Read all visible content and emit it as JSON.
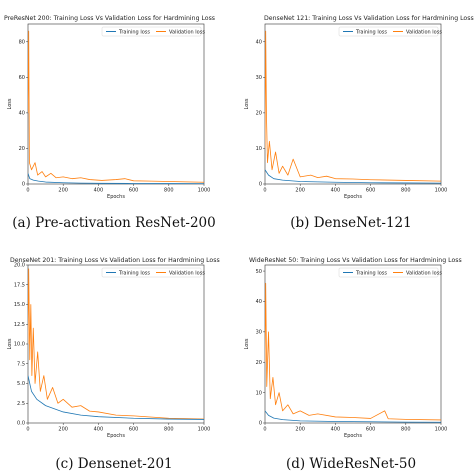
{
  "colors": {
    "training": "#1f77b4",
    "validation": "#ff7f0e"
  },
  "chart_data": [
    {
      "type": "line",
      "title": "PreResNet 200: Training Loss Vs Validation Loss for Hardmining Loss",
      "xlabel": "Epochs",
      "ylabel": "Loss",
      "caption": "(a) Pre-activation ResNet-200",
      "xlim": [
        0,
        1000
      ],
      "ylim": [
        0,
        90
      ],
      "xticks": [
        0,
        200,
        400,
        600,
        800,
        1000
      ],
      "yticks": [
        0,
        20,
        40,
        60,
        80
      ],
      "grid": false,
      "legend": "top-right",
      "series": [
        {
          "name": "Training loss",
          "color": "#1f77b4",
          "points": [
            [
              0,
              6
            ],
            [
              10,
              3
            ],
            [
              30,
              2.2
            ],
            [
              60,
              1.6
            ],
            [
              100,
              1.1
            ],
            [
              200,
              0.7
            ],
            [
              300,
              0.5
            ],
            [
              400,
              0.4
            ],
            [
              600,
              0.3
            ],
            [
              800,
              0.25
            ],
            [
              1000,
              0.2
            ]
          ]
        },
        {
          "name": "Validation loss",
          "color": "#ff7f0e",
          "points": [
            [
              0,
              40
            ],
            [
              4,
              86
            ],
            [
              8,
              12
            ],
            [
              20,
              8
            ],
            [
              40,
              12
            ],
            [
              55,
              5
            ],
            [
              80,
              7
            ],
            [
              100,
              4
            ],
            [
              130,
              6
            ],
            [
              160,
              3.5
            ],
            [
              200,
              4
            ],
            [
              250,
              3
            ],
            [
              300,
              3.5
            ],
            [
              350,
              2.5
            ],
            [
              420,
              2
            ],
            [
              500,
              2.5
            ],
            [
              550,
              3
            ],
            [
              600,
              1.8
            ],
            [
              700,
              1.6
            ],
            [
              800,
              1.4
            ],
            [
              900,
              1.2
            ],
            [
              1000,
              1
            ]
          ]
        }
      ]
    },
    {
      "type": "line",
      "title": "DenseNet 121: Training Loss Vs Validation Loss for Hardmining Loss",
      "xlabel": "Epochs",
      "ylabel": "Loss",
      "caption": "(b) DenseNet-121",
      "xlim": [
        0,
        1000
      ],
      "ylim": [
        0,
        45
      ],
      "xticks": [
        0,
        200,
        400,
        600,
        800,
        1000
      ],
      "yticks": [
        0,
        10,
        20,
        30,
        40
      ],
      "grid": false,
      "legend": "top-right",
      "series": [
        {
          "name": "Training loss",
          "color": "#1f77b4",
          "points": [
            [
              0,
              4
            ],
            [
              20,
              2.5
            ],
            [
              50,
              1.5
            ],
            [
              100,
              1.1
            ],
            [
              200,
              0.7
            ],
            [
              400,
              0.5
            ],
            [
              600,
              0.35
            ],
            [
              800,
              0.3
            ],
            [
              1000,
              0.25
            ]
          ]
        },
        {
          "name": "Validation loss",
          "color": "#ff7f0e",
          "points": [
            [
              0,
              10
            ],
            [
              4,
              43
            ],
            [
              8,
              20
            ],
            [
              14,
              6
            ],
            [
              25,
              12
            ],
            [
              40,
              4
            ],
            [
              60,
              9
            ],
            [
              80,
              3
            ],
            [
              100,
              5
            ],
            [
              130,
              2.5
            ],
            [
              160,
              7
            ],
            [
              200,
              2
            ],
            [
              260,
              2.5
            ],
            [
              300,
              1.8
            ],
            [
              350,
              2.2
            ],
            [
              400,
              1.5
            ],
            [
              500,
              1.4
            ],
            [
              600,
              1.2
            ],
            [
              800,
              1
            ],
            [
              1000,
              0.8
            ]
          ]
        }
      ]
    },
    {
      "type": "line",
      "title": "DenseNet 201: Training Loss Vs Validation Loss for Hardmining Loss",
      "xlabel": "Epochs",
      "ylabel": "Loss",
      "caption": "(c) Densenet-201",
      "xlim": [
        0,
        1000
      ],
      "ylim": [
        0,
        20
      ],
      "xticks": [
        0,
        200,
        400,
        600,
        800,
        1000
      ],
      "yticks": [
        0.0,
        2.5,
        5.0,
        7.5,
        10.0,
        12.5,
        15.0,
        17.5,
        20.0
      ],
      "grid": false,
      "legend": "top-right",
      "series": [
        {
          "name": "Training loss",
          "color": "#1f77b4",
          "points": [
            [
              0,
              6
            ],
            [
              20,
              4
            ],
            [
              50,
              3
            ],
            [
              100,
              2.2
            ],
            [
              200,
              1.4
            ],
            [
              300,
              1
            ],
            [
              400,
              0.8
            ],
            [
              600,
              0.6
            ],
            [
              800,
              0.5
            ],
            [
              1000,
              0.45
            ]
          ]
        },
        {
          "name": "Validation loss",
          "color": "#ff7f0e",
          "points": [
            [
              0,
              10
            ],
            [
              4,
              19.5
            ],
            [
              10,
              8
            ],
            [
              16,
              15
            ],
            [
              22,
              6
            ],
            [
              30,
              12
            ],
            [
              40,
              5
            ],
            [
              55,
              9
            ],
            [
              70,
              4
            ],
            [
              90,
              6
            ],
            [
              110,
              3
            ],
            [
              140,
              4.5
            ],
            [
              170,
              2.5
            ],
            [
              200,
              3
            ],
            [
              250,
              2
            ],
            [
              300,
              2.2
            ],
            [
              350,
              1.5
            ],
            [
              400,
              1.4
            ],
            [
              500,
              1
            ],
            [
              600,
              0.9
            ],
            [
              800,
              0.6
            ],
            [
              1000,
              0.5
            ]
          ]
        }
      ]
    },
    {
      "type": "line",
      "title": "WideResNet 50: Training Loss Vs Validation Loss for Hardmining Loss",
      "xlabel": "Epochs",
      "ylabel": "Loss",
      "caption": "(d) WideResNet-50",
      "xlim": [
        0,
        1000
      ],
      "ylim": [
        0,
        52
      ],
      "xticks": [
        0,
        200,
        400,
        600,
        800,
        1000
      ],
      "yticks": [
        0,
        10,
        20,
        30,
        40,
        50
      ],
      "grid": false,
      "legend": "top-right",
      "series": [
        {
          "name": "Training loss",
          "color": "#1f77b4",
          "points": [
            [
              0,
              4
            ],
            [
              20,
              2.5
            ],
            [
              50,
              1.6
            ],
            [
              100,
              1.1
            ],
            [
              200,
              0.7
            ],
            [
              400,
              0.5
            ],
            [
              600,
              0.4
            ],
            [
              800,
              0.3
            ],
            [
              1000,
              0.25
            ]
          ]
        },
        {
          "name": "Validation loss",
          "color": "#ff7f0e",
          "points": [
            [
              0,
              20
            ],
            [
              4,
              46
            ],
            [
              10,
              12
            ],
            [
              20,
              30
            ],
            [
              30,
              8
            ],
            [
              45,
              15
            ],
            [
              60,
              6
            ],
            [
              80,
              10
            ],
            [
              100,
              4
            ],
            [
              130,
              6
            ],
            [
              160,
              3
            ],
            [
              200,
              4
            ],
            [
              250,
              2.5
            ],
            [
              300,
              3
            ],
            [
              400,
              2
            ],
            [
              500,
              1.8
            ],
            [
              600,
              1.5
            ],
            [
              680,
              4
            ],
            [
              700,
              1.4
            ],
            [
              800,
              1.2
            ],
            [
              1000,
              1
            ]
          ]
        }
      ]
    }
  ]
}
